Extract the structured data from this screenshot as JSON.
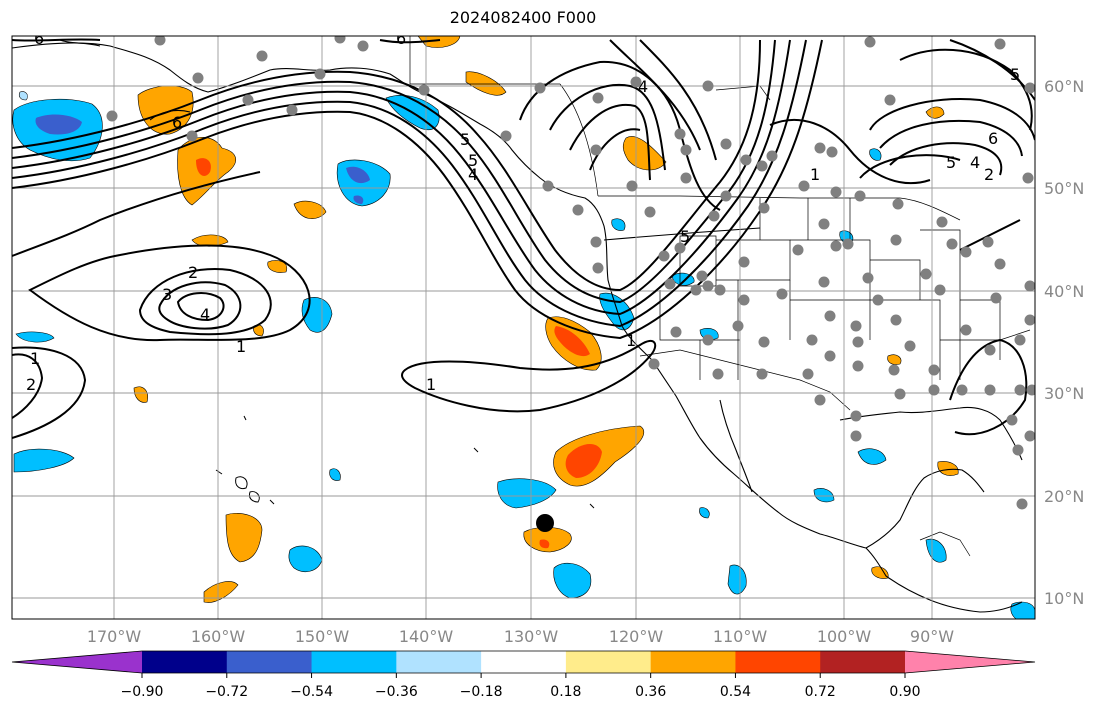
{
  "title": "2024082400 F000",
  "lon_labels": [
    "170°W",
    "160°W",
    "150°W",
    "140°W",
    "130°W",
    "120°W",
    "110°W",
    "100°W",
    "90°W"
  ],
  "lat_labels": [
    "60°N",
    "50°N",
    "40°N",
    "30°N",
    "20°N",
    "10°N"
  ],
  "colorbar": {
    "tick_labels": [
      "−0.90",
      "−0.72",
      "−0.54",
      "−0.36",
      "−0.18",
      "0.18",
      "0.36",
      "0.54",
      "0.72",
      "0.90"
    ],
    "colors": [
      "#9a32cd",
      "#00008b",
      "#3a5fcd",
      "#00bfff",
      "#b0e2ff",
      "#ffffff",
      "#ffec8b",
      "#ffa500",
      "#ff4500",
      "#b22222",
      "#ff82ab"
    ]
  },
  "contour_labels": [
    "6",
    "6",
    "6",
    "4",
    "5",
    "5",
    "4",
    "5",
    "1",
    "1",
    "2",
    "3",
    "4",
    "1",
    "1",
    "2",
    "1",
    "5",
    "6",
    "5",
    "4",
    "2"
  ],
  "colors": {
    "grid": "#999999",
    "station": "#808080",
    "marker": "#000000",
    "pos_light": "#ffa500",
    "pos_dark": "#ff4500",
    "neg_light": "#00bfff",
    "neg_dark": "#3a5fcd"
  }
}
